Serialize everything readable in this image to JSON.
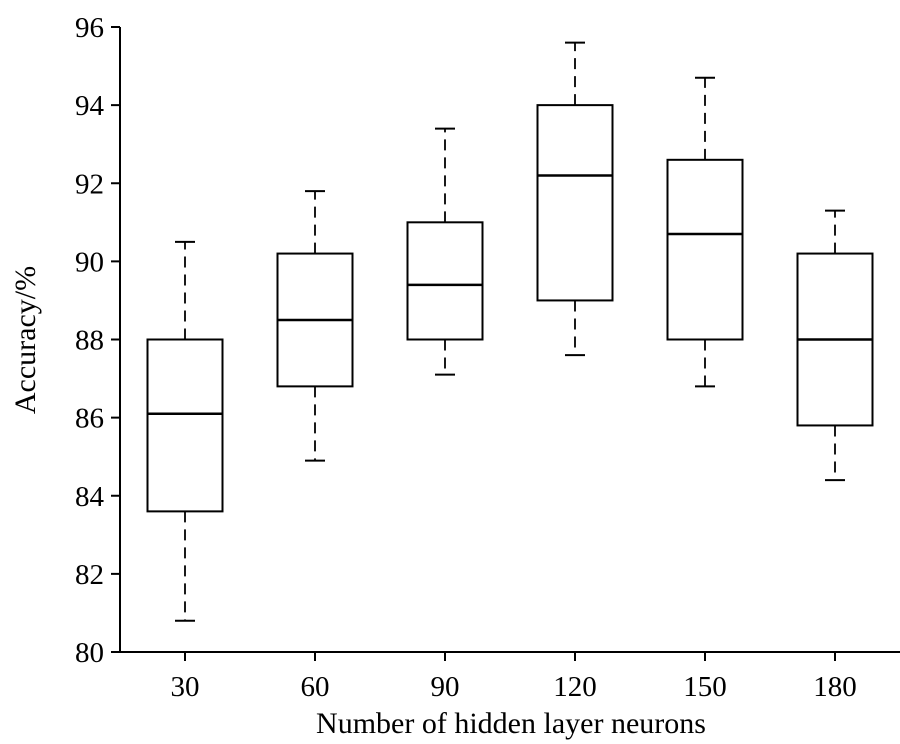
{
  "chart_data": {
    "type": "box",
    "xlabel": "Number of hidden layer neurons",
    "ylabel": "Accuracy/%",
    "ylim": [
      80,
      96
    ],
    "yticks": [
      80,
      82,
      84,
      86,
      88,
      90,
      92,
      94,
      96
    ],
    "categories": [
      "30",
      "60",
      "90",
      "120",
      "150",
      "180"
    ],
    "boxes": [
      {
        "category": "30",
        "min": 80.8,
        "q1": 83.6,
        "median": 86.1,
        "q3": 88.0,
        "max": 90.5
      },
      {
        "category": "60",
        "min": 84.9,
        "q1": 86.8,
        "median": 88.5,
        "q3": 90.2,
        "max": 91.8
      },
      {
        "category": "90",
        "min": 87.1,
        "q1": 88.0,
        "median": 89.4,
        "q3": 91.0,
        "max": 93.4
      },
      {
        "category": "120",
        "min": 87.6,
        "q1": 89.0,
        "median": 92.2,
        "q3": 94.0,
        "max": 95.6
      },
      {
        "category": "150",
        "min": 86.8,
        "q1": 88.0,
        "median": 90.7,
        "q3": 92.6,
        "max": 94.7
      },
      {
        "category": "180",
        "min": 84.4,
        "q1": 85.8,
        "median": 88.0,
        "q3": 90.2,
        "max": 91.3
      }
    ],
    "grid": false,
    "legend": "none"
  }
}
